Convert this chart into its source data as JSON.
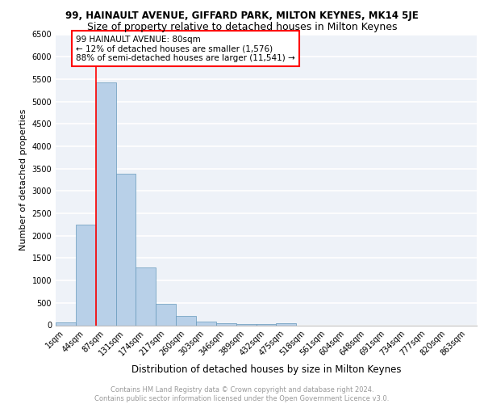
{
  "title1": "99, HAINAULT AVENUE, GIFFARD PARK, MILTON KEYNES, MK14 5JE",
  "title2": "Size of property relative to detached houses in Milton Keynes",
  "xlabel": "Distribution of detached houses by size in Milton Keynes",
  "ylabel": "Number of detached properties",
  "footnote": "Contains HM Land Registry data © Crown copyright and database right 2024.\nContains public sector information licensed under the Open Government Licence v3.0.",
  "categories": [
    "1sqm",
    "44sqm",
    "87sqm",
    "131sqm",
    "174sqm",
    "217sqm",
    "260sqm",
    "303sqm",
    "346sqm",
    "389sqm",
    "432sqm",
    "475sqm",
    "518sqm",
    "561sqm",
    "604sqm",
    "648sqm",
    "691sqm",
    "734sqm",
    "777sqm",
    "820sqm",
    "863sqm"
  ],
  "values": [
    55,
    2250,
    5430,
    3380,
    1290,
    470,
    200,
    80,
    50,
    30,
    20,
    50,
    0,
    0,
    0,
    0,
    0,
    0,
    0,
    0,
    0
  ],
  "bar_color": "#b8d0e8",
  "bar_edge_color": "#6699bb",
  "property_line_x": 1.5,
  "annotation_text": "99 HAINAULT AVENUE: 80sqm\n← 12% of detached houses are smaller (1,576)\n88% of semi-detached houses are larger (11,541) →",
  "ylim": [
    0,
    6500
  ],
  "yticks": [
    0,
    500,
    1000,
    1500,
    2000,
    2500,
    3000,
    3500,
    4000,
    4500,
    5000,
    5500,
    6000,
    6500
  ],
  "background_color": "#eef2f8",
  "grid_color": "#ffffff",
  "title1_fontsize": 8.5,
  "title2_fontsize": 9,
  "xlabel_fontsize": 8.5,
  "ylabel_fontsize": 8,
  "tick_fontsize": 7,
  "annotation_fontsize": 7.5,
  "footnote_fontsize": 6,
  "footnote_color": "#999999"
}
